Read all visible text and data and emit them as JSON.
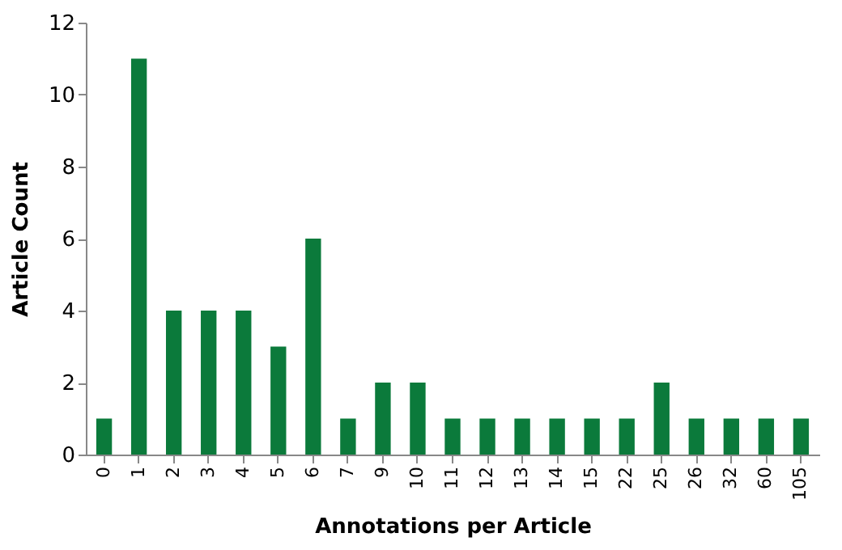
{
  "chart_data": {
    "type": "bar",
    "xlabel": "Annotations per Article",
    "ylabel": "Article Count",
    "categories": [
      "0",
      "1",
      "2",
      "3",
      "4",
      "5",
      "6",
      "7",
      "9",
      "10",
      "11",
      "12",
      "13",
      "14",
      "15",
      "22",
      "25",
      "26",
      "32",
      "60",
      "105"
    ],
    "values": [
      1,
      11,
      4,
      4,
      4,
      3,
      6,
      1,
      2,
      2,
      1,
      1,
      1,
      1,
      1,
      1,
      2,
      1,
      1,
      1,
      1
    ],
    "color": "#0b7a3b",
    "ylim": [
      0,
      12
    ],
    "yticks": [
      0,
      2,
      4,
      6,
      8,
      10,
      12
    ],
    "grid": false
  }
}
